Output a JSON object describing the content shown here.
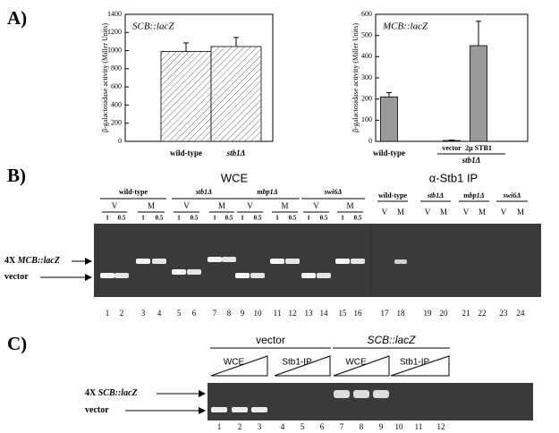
{
  "chart_data": [
    {
      "type": "bar",
      "title": "SCB::lacZ",
      "ylabel": "β-galactosidase activity (Miller Units)",
      "categories": [
        "wild-type",
        "stb1Δ"
      ],
      "values": [
        990,
        1045
      ],
      "errors": [
        95,
        100
      ],
      "color": "#ffffff",
      "hatch": true,
      "ylim": [
        0,
        1400
      ],
      "yticks": [
        0,
        200,
        400,
        600,
        800,
        1000,
        1200,
        1400
      ],
      "grid": false
    },
    {
      "type": "bar",
      "title": "MCB::lacZ",
      "ylabel": "β-galactosidase activity (Miller Units)",
      "categories": [
        "wild-type",
        "vector",
        "2μ STB1"
      ],
      "group_label": "stb1Δ",
      "values": [
        210,
        4,
        452
      ],
      "errors": [
        20,
        2,
        115
      ],
      "color": "#9a9a9a",
      "hatch": false,
      "ylim": [
        0,
        600
      ],
      "yticks": [
        0,
        100,
        200,
        300,
        400,
        500,
        600
      ],
      "grid": false
    }
  ],
  "panel_a": {
    "label": "A)"
  },
  "panel_b": {
    "label": "B)",
    "wce": {
      "title": "WCE",
      "strains": [
        {
          "name": "wild-type",
          "conditions": [
            {
              "name": "V",
              "amounts": [
                1,
                0.5
              ]
            },
            {
              "name": "M",
              "amounts": [
                1,
                0.5
              ]
            }
          ]
        },
        {
          "name": "stb1Δ",
          "conditions": [
            {
              "name": "V",
              "amounts": [
                1,
                0.5
              ]
            },
            {
              "name": "M",
              "amounts": [
                1,
                0.5
              ]
            }
          ]
        },
        {
          "name": "mbp1Δ",
          "conditions": [
            {
              "name": "V",
              "amounts": [
                1,
                0.5
              ]
            },
            {
              "name": "M",
              "amounts": [
                1,
                0.5
              ]
            }
          ]
        },
        {
          "name": "swi6Δ",
          "conditions": [
            {
              "name": "V",
              "amounts": [
                1,
                0.5
              ]
            },
            {
              "name": "M",
              "amounts": [
                1,
                0.5
              ]
            }
          ]
        }
      ]
    },
    "ip": {
      "title": "α-Stb1 IP",
      "strains": [
        {
          "name": "wild-type",
          "conditions": [
            "V",
            "M"
          ]
        },
        {
          "name": "stb1Δ",
          "conditions": [
            "V",
            "M"
          ]
        },
        {
          "name": "mbp1Δ",
          "conditions": [
            "V",
            "M"
          ]
        },
        {
          "name": "swi6Δ",
          "conditions": [
            "V",
            "M"
          ]
        }
      ]
    },
    "lanes": [
      1,
      2,
      3,
      4,
      5,
      6,
      7,
      8,
      9,
      10,
      11,
      12,
      13,
      14,
      15,
      16,
      17,
      18,
      19,
      20,
      21,
      22,
      23,
      24
    ],
    "markers": [
      {
        "prefix": "4X",
        "name": "MCB::lacZ"
      },
      {
        "name": "vector"
      }
    ]
  },
  "panel_c": {
    "label": "C)",
    "groups": [
      {
        "name": "vector",
        "subgroups": [
          "WCE",
          "Stb1-IP"
        ]
      },
      {
        "name": "SCB::lacZ",
        "subgroups": [
          "WCE",
          "Stb1-IP"
        ]
      }
    ],
    "lanes": [
      1,
      2,
      3,
      4,
      5,
      6,
      7,
      8,
      9,
      10,
      11,
      12
    ],
    "markers": [
      {
        "prefix": "4X",
        "name": "SCB::lacZ"
      },
      {
        "name": "vector"
      }
    ]
  }
}
